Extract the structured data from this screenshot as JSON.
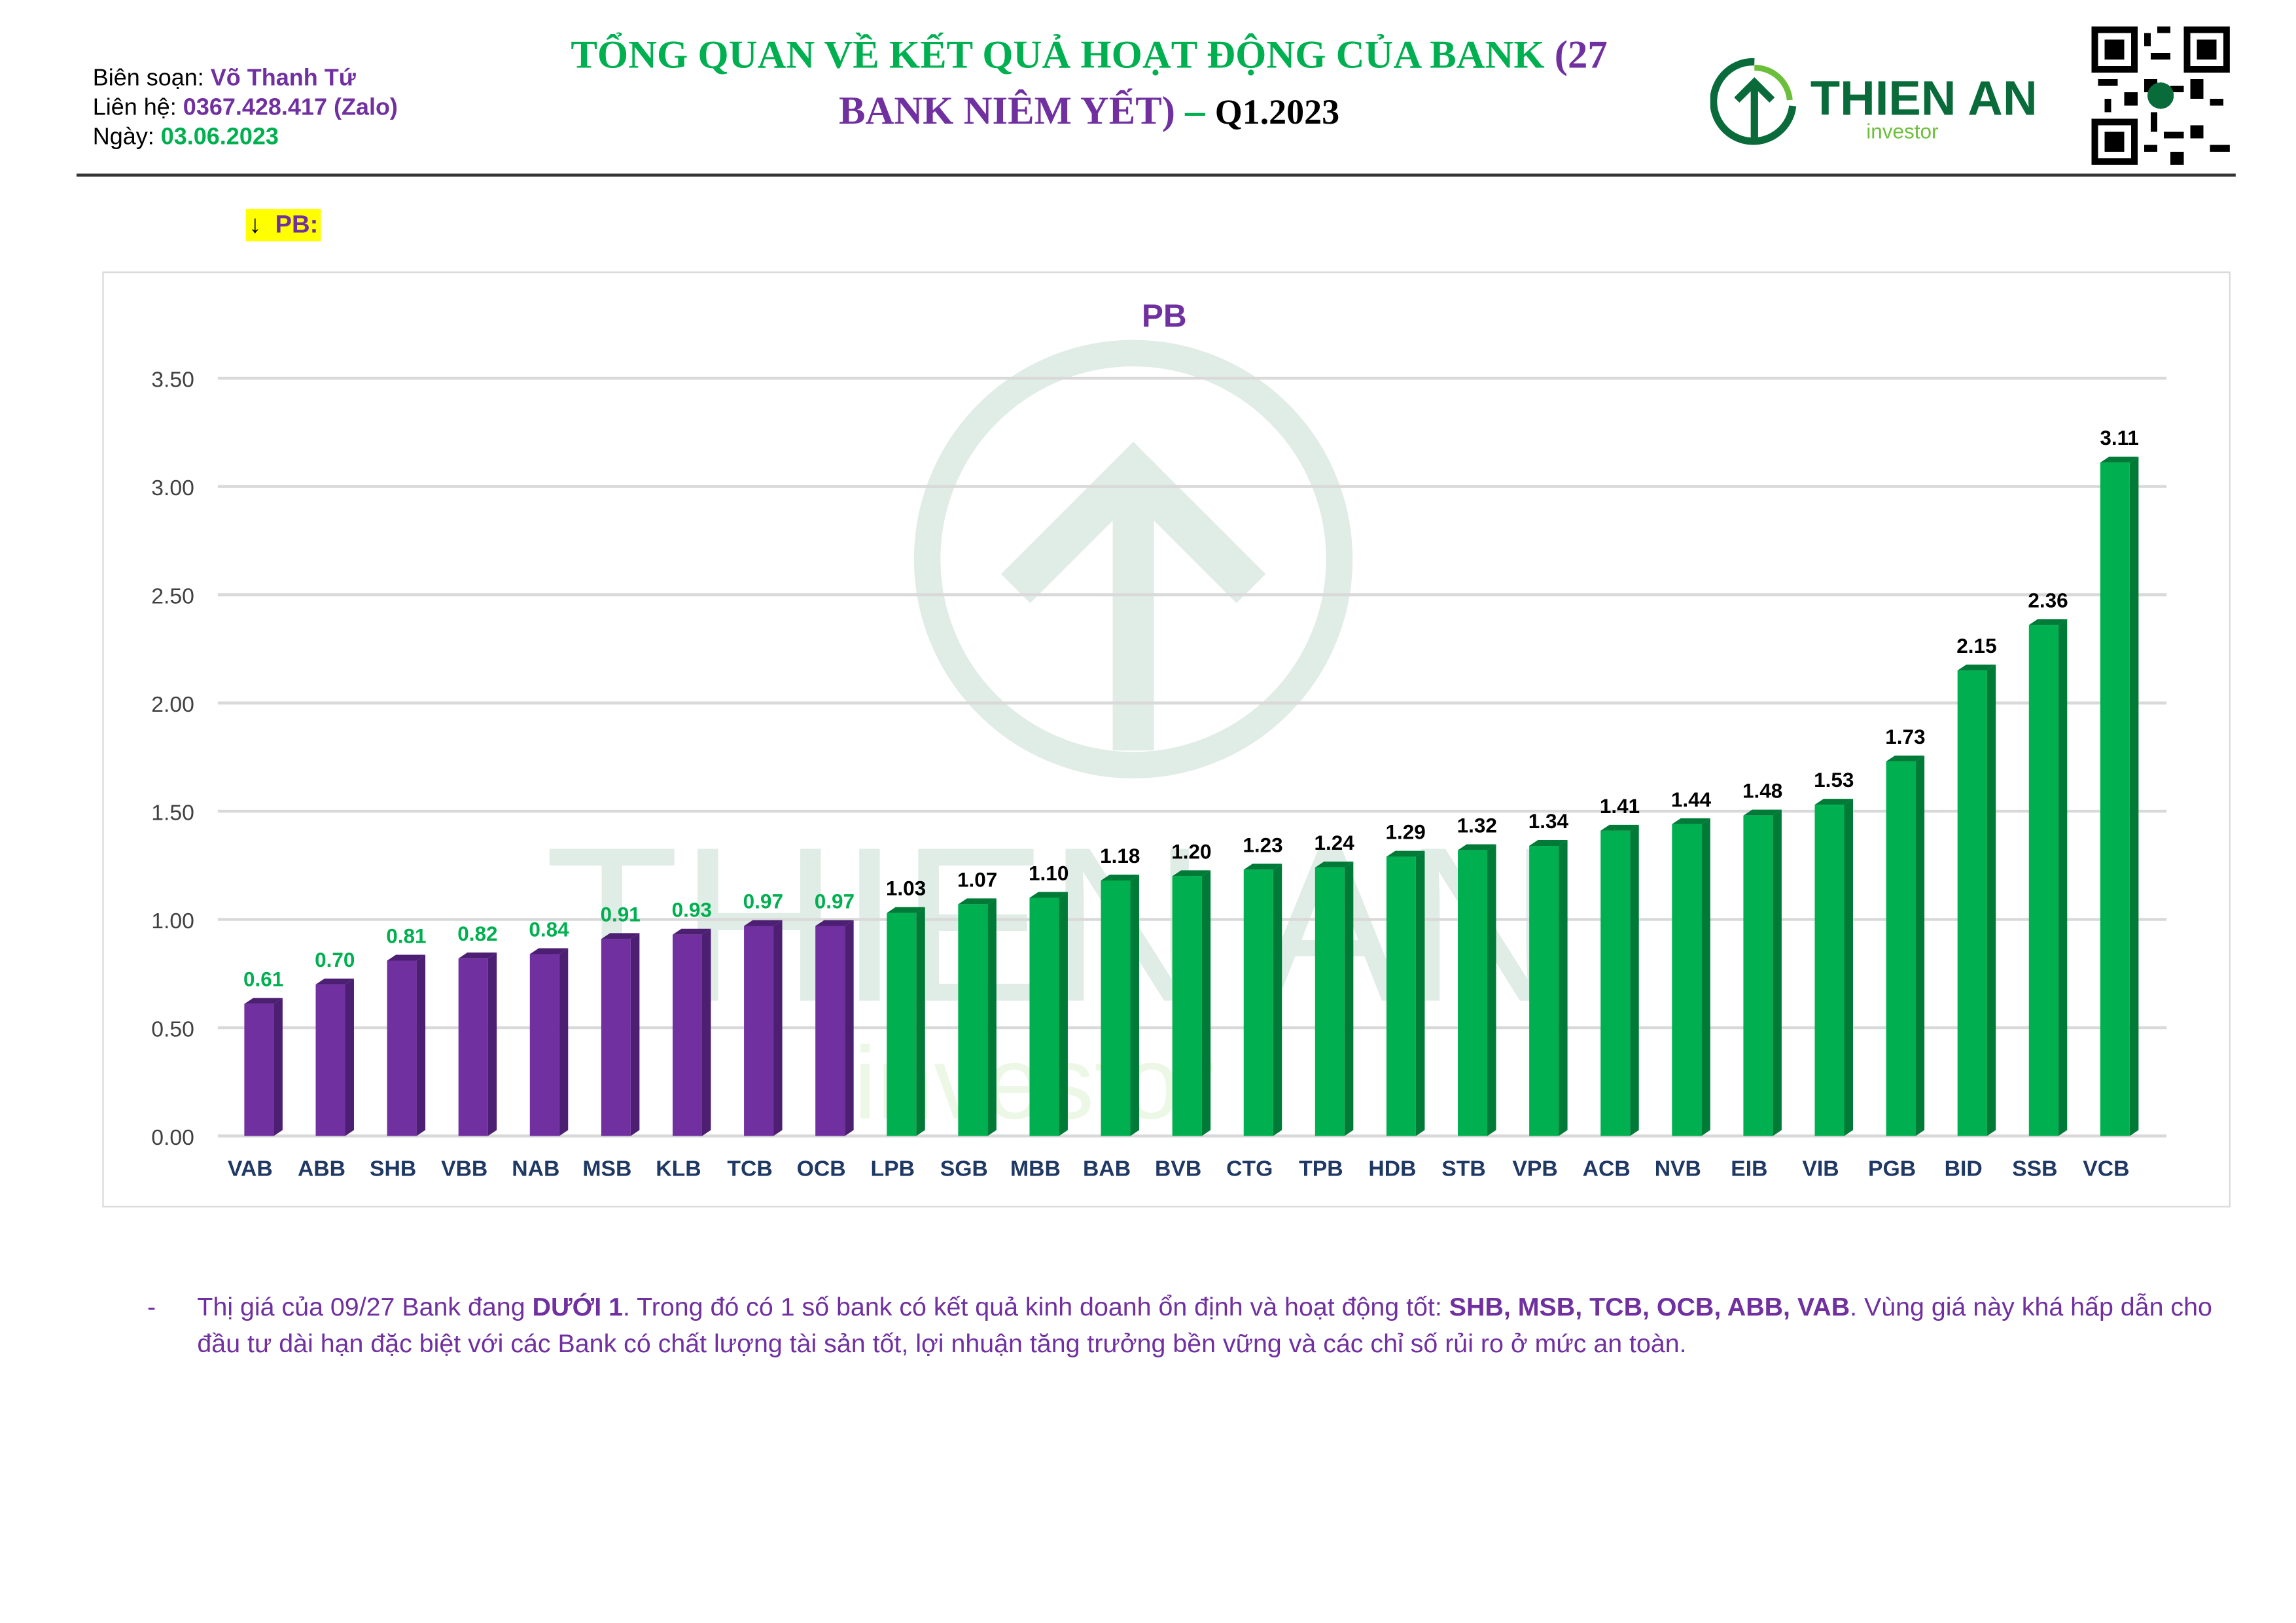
{
  "header": {
    "author_label": "Biên soạn:",
    "author": "Võ Thanh Tứ",
    "contact_label": "Liên hệ:",
    "contact": "0367.428.417 (Zalo)",
    "date_label": "Ngày:",
    "date": "03.06.2023",
    "title_line1": "TỔNG QUAN VỀ KẾT QUẢ HOẠT ĐỘNG CỦA BANK",
    "title_paren": "(27",
    "title_line2": "BANK NIÊM YẾT)",
    "title_dash": " – ",
    "title_period": "Q1.2023",
    "logo_name": "THIEN AN",
    "logo_sub": "investor"
  },
  "section_tag": "PB:",
  "chart_data": {
    "type": "bar",
    "title": "PB",
    "xlabel": "",
    "ylabel": "",
    "ylim": [
      0,
      3.5
    ],
    "yticks": [
      "0.00",
      "0.50",
      "1.00",
      "1.50",
      "2.00",
      "2.50",
      "3.00",
      "3.50"
    ],
    "grid": true,
    "watermark": "THIEN AN investor",
    "categories": [
      "VAB",
      "ABB",
      "SHB",
      "VBB",
      "NAB",
      "MSB",
      "KLB",
      "TCB",
      "OCB",
      "LPB",
      "SGB",
      "MBB",
      "BAB",
      "BVB",
      "CTG",
      "TPB",
      "HDB",
      "STB",
      "VPB",
      "ACB",
      "NVB",
      "EIB",
      "VIB",
      "PGB",
      "BID",
      "SSB",
      "VCB"
    ],
    "values": [
      0.61,
      0.7,
      0.81,
      0.82,
      0.84,
      0.91,
      0.93,
      0.97,
      0.97,
      1.03,
      1.07,
      1.1,
      1.18,
      1.2,
      1.23,
      1.24,
      1.29,
      1.32,
      1.34,
      1.41,
      1.44,
      1.48,
      1.53,
      1.73,
      2.15,
      2.36,
      3.11
    ],
    "colors": {
      "below_1": "#7030A0",
      "above_1": "#00B050",
      "label_below_1": "#00B050",
      "label_above_1": "#000000"
    }
  },
  "note": {
    "bullet": "-",
    "t1": "Thị giá của 09/27 Bank đang ",
    "b1": "DƯỚI 1",
    "t2": ". Trong đó có 1 số bank có kết quả kinh doanh ổn định và hoạt động tốt: ",
    "b2": "SHB, MSB, TCB, OCB, ABB, VAB",
    "t3": ". Vùng giá này khá hấp dẫn cho đầu tư dài hạn đặc biệt với các Bank có chất lượng tài sản tốt, lợi nhuận tăng trưởng bền vững và các chỉ số rủi ro ở mức an toàn."
  }
}
